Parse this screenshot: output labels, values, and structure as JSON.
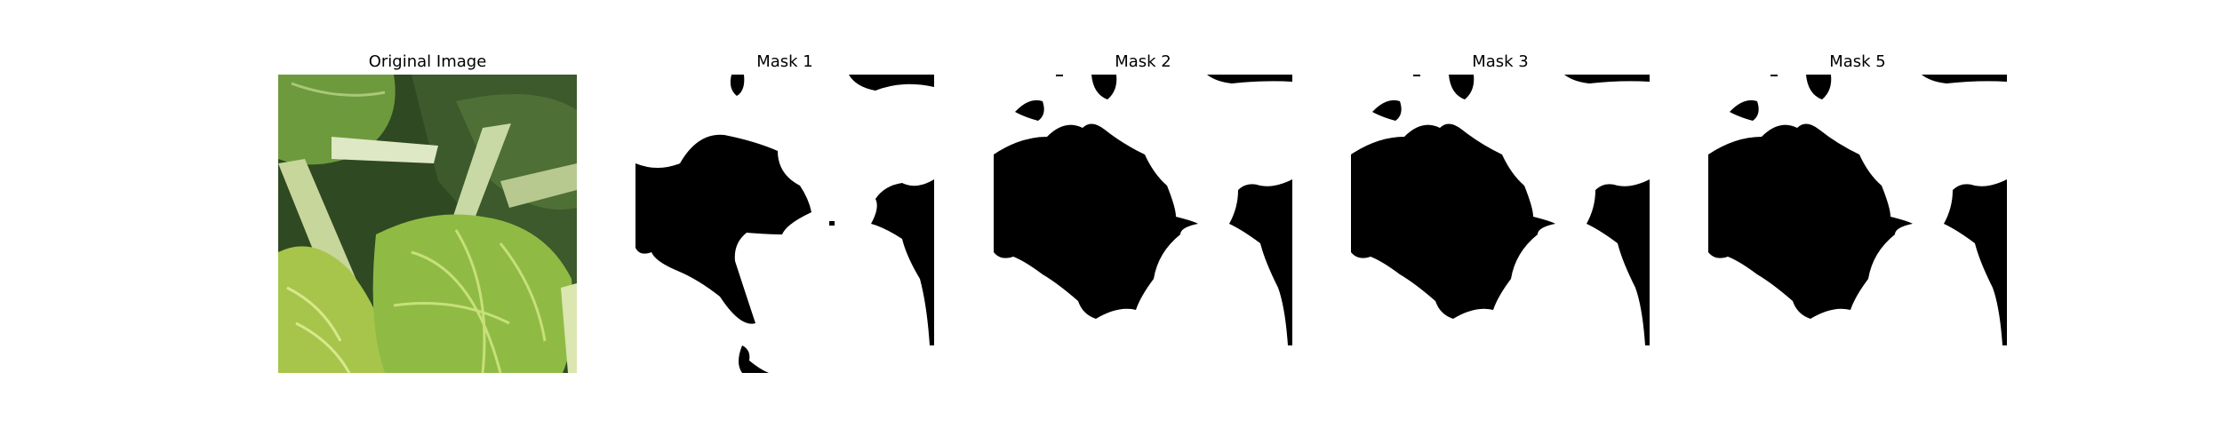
{
  "panels": [
    {
      "title": "Original Image",
      "content": "photo of green leafy vegetable (bok choy) leaves"
    },
    {
      "title": "Mask 1",
      "content": "binary segmentation mask"
    },
    {
      "title": "Mask 2",
      "content": "binary segmentation mask"
    },
    {
      "title": "Mask 3",
      "content": "binary segmentation mask"
    },
    {
      "title": "Mask 5",
      "content": "binary segmentation mask"
    }
  ],
  "colors": {
    "mask_foreground": "#000000",
    "mask_background": "#ffffff"
  }
}
